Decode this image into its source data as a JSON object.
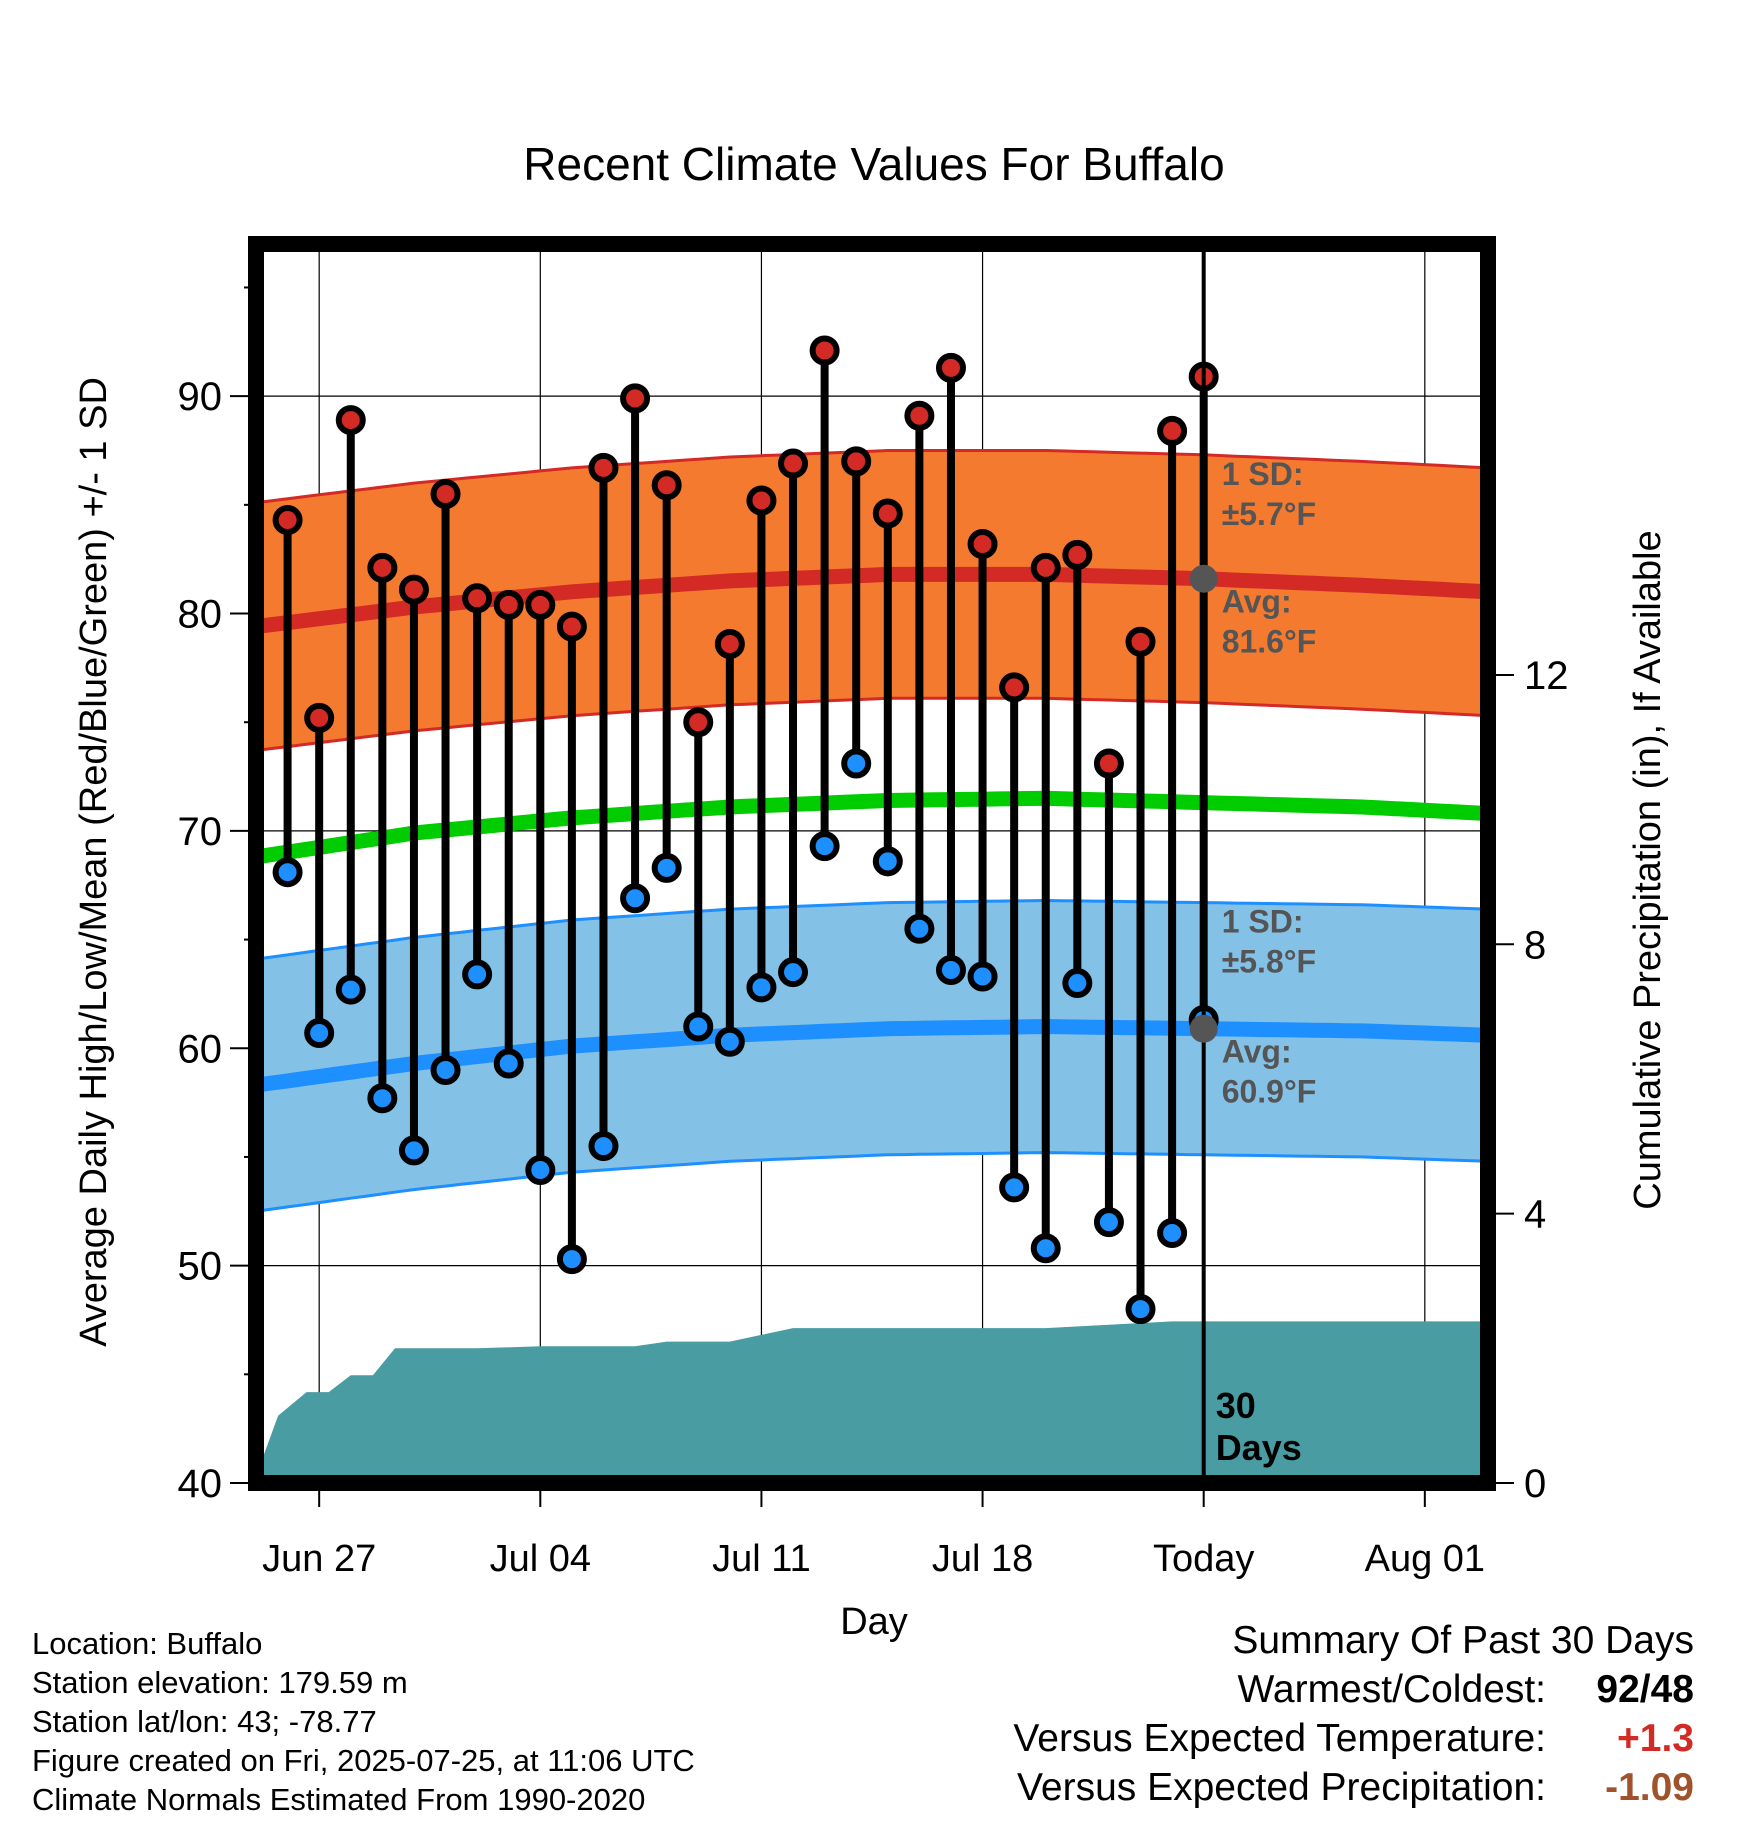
{
  "chart_data": {
    "type": "line",
    "title": "Recent Climate Values For Buffalo",
    "xlabel": "Day",
    "ylabel": "Average Daily High/Low/Mean (Red/Blue/Green) +/- 1 SD",
    "y2label": "Cumulative Precipitation (in), If Available",
    "ylim": [
      40,
      97
    ],
    "y2lim": [
      0,
      18.4
    ],
    "yticks": [
      "40",
      "50",
      "60",
      "70",
      "80",
      "90"
    ],
    "y2ticks": [
      "0",
      "4",
      "8",
      "12"
    ],
    "xticks": [
      "Jun 27",
      "Jul 04",
      "Jul 11",
      "Jul 18",
      "Today",
      "Aug 01"
    ],
    "xtick_day": [
      2,
      9,
      16,
      23,
      30,
      37
    ],
    "x_range_day": [
      0,
      39
    ],
    "days_window_label": "30 Days",
    "high_normal": {
      "day": [
        0,
        5,
        10,
        15,
        20,
        25,
        30,
        35,
        39
      ],
      "avg": [
        79.4,
        80.3,
        81.0,
        81.5,
        81.8,
        81.8,
        81.6,
        81.3,
        81.0
      ],
      "sd_label": "1 SD:",
      "sd_value": "±5.7°F",
      "avg_label": "Avg:",
      "avg_value": "81.6°F",
      "today_avg": 81.6,
      "sd": 5.7
    },
    "low_normal": {
      "day": [
        0,
        5,
        10,
        15,
        20,
        25,
        30,
        35,
        39
      ],
      "avg": [
        58.3,
        59.3,
        60.1,
        60.6,
        60.9,
        61.0,
        60.9,
        60.8,
        60.6
      ],
      "sd_label": "1 SD:",
      "sd_value": "±5.8°F",
      "avg_label": "Avg:",
      "avg_value": "60.9°F",
      "today_avg": 60.9,
      "sd": 5.8
    },
    "mean_normal": {
      "day": [
        0,
        5,
        10,
        15,
        20,
        25,
        30,
        35,
        39
      ],
      "avg": [
        68.8,
        69.9,
        70.6,
        71.1,
        71.4,
        71.5,
        71.3,
        71.1,
        70.8
      ]
    },
    "observed": {
      "day": [
        1,
        2,
        3,
        4,
        5,
        6,
        7,
        8,
        9,
        10,
        11,
        12,
        13,
        14,
        15,
        16,
        17,
        18,
        19,
        20,
        21,
        22,
        23,
        24,
        25,
        26,
        27,
        28,
        29
      ],
      "high": [
        84.3,
        75.2,
        88.9,
        82.1,
        81.1,
        85.5,
        80.7,
        80.4,
        80.4,
        79.4,
        86.7,
        89.9,
        85.9,
        75.0,
        78.6,
        85.2,
        86.9,
        92.1,
        87.0,
        84.6,
        89.1,
        91.3,
        83.2,
        76.6,
        82.1,
        82.7,
        73.1,
        78.7,
        88.4
      ],
      "low": [
        68.1,
        60.7,
        62.7,
        57.7,
        55.3,
        59.0,
        63.4,
        59.3,
        54.4,
        50.3,
        55.5,
        66.9,
        68.3,
        61.0,
        60.3,
        62.8,
        63.5,
        69.3,
        73.1,
        68.6,
        65.5,
        63.6,
        63.3,
        53.6,
        50.8,
        63.0,
        52.0,
        48.0,
        51.5
      ]
    },
    "last_day_high": 90.9,
    "last_day_low": 61.3,
    "precipitation": {
      "day": [
        0,
        0.7,
        1.6,
        2.3,
        3.0,
        3.7,
        4.4,
        5.1,
        7,
        9,
        11,
        12,
        13,
        15,
        17,
        18,
        20,
        25,
        29,
        30,
        39
      ],
      "cumulative": [
        0.1,
        1.0,
        1.35,
        1.35,
        1.6,
        1.6,
        2.0,
        2.0,
        2.0,
        2.03,
        2.03,
        2.03,
        2.1,
        2.1,
        2.3,
        2.3,
        2.3,
        2.3,
        2.4,
        2.4,
        2.4
      ]
    }
  },
  "info": {
    "location": "Location: Buffalo",
    "elevation": "Station elevation: 179.59 m",
    "latlon": "Station lat/lon: 43; -78.77",
    "created": "Figure created on Fri, 2025-07-25, at 11:06 UTC",
    "normals": "Climate Normals Estimated From 1990-2020"
  },
  "summary": {
    "title": "Summary Of Past 30 Days",
    "warm_cold_label": "Warmest/Coldest:",
    "warmest": "92",
    "coldest": "48",
    "temp_label": "Versus Expected Temperature:",
    "temp_value": "+1.3",
    "precip_label": "Versus Expected Precipitation:",
    "precip_value": "-1.09"
  },
  "colors": {
    "high_band": "#f47a30",
    "high_line": "#d42a25",
    "low_band": "#84c1e6",
    "low_line": "#1e8fff",
    "mean_line": "#00cc00",
    "precip": "#4a9ca3",
    "high_dot": "#d42a25",
    "low_dot": "#1e8fff",
    "annotation": "#555555",
    "temp_pos": "#d42a25",
    "precip_neg": "#a0522d"
  }
}
